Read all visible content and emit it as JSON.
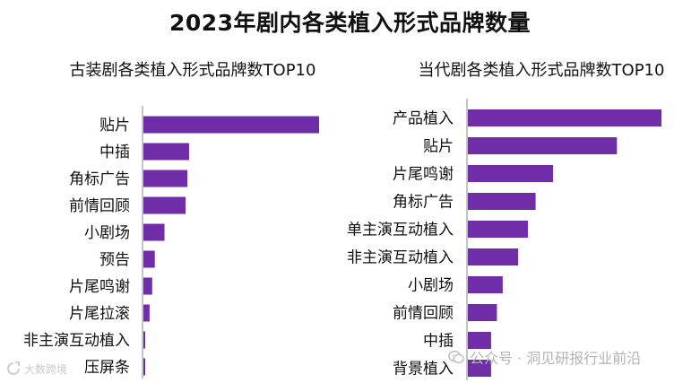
{
  "title": "2023年剧内各类植入形式品牌数量",
  "chart_data": [
    {
      "type": "bar",
      "orientation": "horizontal",
      "title": "古装剧各类植入形式品牌数TOP10",
      "categories": [
        "贴片",
        "中插",
        "角标广告",
        "前情回顾",
        "小剧场",
        "预告",
        "片尾鸣谢",
        "片尾拉滚",
        "非主演互动植入",
        "压屏条"
      ],
      "values": [
        100,
        26,
        25,
        24,
        12,
        6.5,
        5,
        3.5,
        1,
        1
      ],
      "xlim": [
        0,
        100
      ],
      "color": "#6f2da8"
    },
    {
      "type": "bar",
      "orientation": "horizontal",
      "title": "当代剧各类植入形式品牌数TOP10",
      "categories": [
        "产品植入",
        "贴片",
        "片尾鸣谢",
        "角标广告",
        "单主演互动植入",
        "非主演互动植入",
        "小剧场",
        "前情回顾",
        "中插",
        "背景植入"
      ],
      "values": [
        100,
        77,
        44,
        35,
        31,
        26,
        18,
        15,
        12,
        12
      ],
      "xlim": [
        0,
        100
      ],
      "color": "#6f2da8"
    }
  ],
  "watermark": {
    "left_text": "大数跨境",
    "right_text": "公众号 · 洞见研报行业前沿"
  }
}
